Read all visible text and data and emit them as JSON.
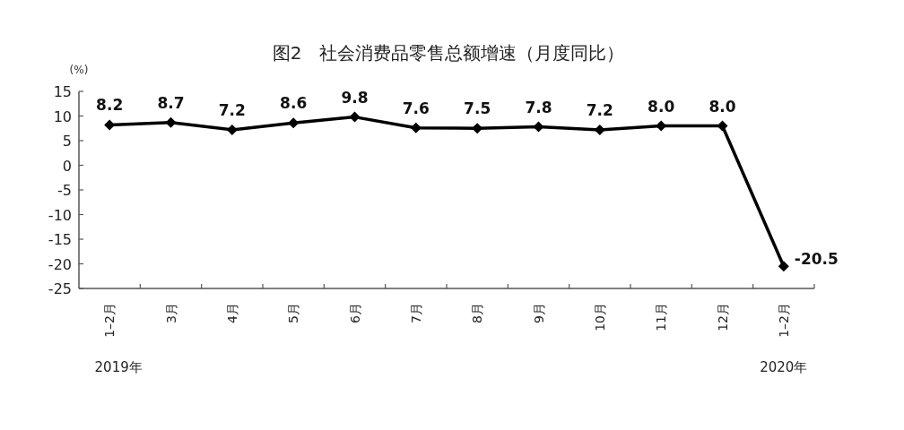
{
  "chart_data": {
    "type": "line",
    "title": "图2　社会消费品零售总额增速（月度同比）",
    "ylabel": "(%)",
    "categories": [
      "1–2月",
      "3月",
      "4月",
      "5月",
      "6月",
      "7月",
      "8月",
      "9月",
      "10月",
      "11月",
      "12月",
      "1–2月"
    ],
    "values": [
      8.2,
      8.7,
      7.2,
      8.6,
      9.8,
      7.6,
      7.5,
      7.8,
      7.2,
      8.0,
      8.0,
      -20.5
    ],
    "value_labels": [
      "8.2",
      "8.7",
      "7.2",
      "8.6",
      "9.8",
      "7.6",
      "7.5",
      "7.8",
      "7.2",
      "8.0",
      "8.0",
      "-20.5"
    ],
    "color": "#000000",
    "marker": "diamond",
    "line_style": "solid",
    "ylim": [
      -25,
      15
    ],
    "yticks": [
      -25,
      -20,
      -15,
      -10,
      -5,
      0,
      5,
      10,
      15
    ],
    "annotations": [
      "2019年",
      "2020年"
    ]
  }
}
